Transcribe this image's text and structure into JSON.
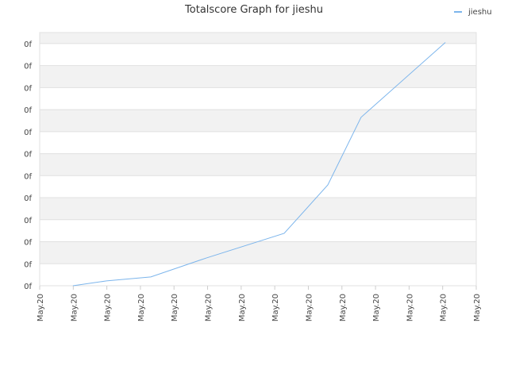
{
  "chart_data": {
    "type": "line",
    "title": "Totalscore Graph for jieshu",
    "x": [
      0.99,
      1.99,
      3.31,
      4.96,
      7.28,
      8.58,
      9.57,
      12.08
    ],
    "series": [
      {
        "name": "jieshu",
        "color": "#7cb5ec",
        "values": [
          0,
          0.22,
          0.4,
          1.26,
          2.38,
          4.58,
          7.65,
          11.05
        ]
      }
    ],
    "xlim": [
      0,
      13
    ],
    "xticks": [
      {
        "value": 0,
        "label": "May.20"
      },
      {
        "value": 1,
        "label": "May.20"
      },
      {
        "value": 2,
        "label": "May.20"
      },
      {
        "value": 3,
        "label": "May.20"
      },
      {
        "value": 4,
        "label": "May.20"
      },
      {
        "value": 5,
        "label": "May.20"
      },
      {
        "value": 6,
        "label": "May.20"
      },
      {
        "value": 7,
        "label": "May.20"
      },
      {
        "value": 8,
        "label": "May.20"
      },
      {
        "value": 9,
        "label": "May.20"
      },
      {
        "value": 10,
        "label": "May.20"
      },
      {
        "value": 11,
        "label": "May.20"
      },
      {
        "value": 12,
        "label": "May.20"
      },
      {
        "value": 13,
        "label": "May.20"
      }
    ],
    "ylim": [
      0,
      11.5
    ],
    "yticks": [
      {
        "value": 0,
        "label": "0f"
      },
      {
        "value": 1,
        "label": "0f"
      },
      {
        "value": 2,
        "label": "0f"
      },
      {
        "value": 3,
        "label": "0f"
      },
      {
        "value": 4,
        "label": "0f"
      },
      {
        "value": 5,
        "label": "0f"
      },
      {
        "value": 6,
        "label": "0f"
      },
      {
        "value": 7,
        "label": "0f"
      },
      {
        "value": 8,
        "label": "0f"
      },
      {
        "value": 9,
        "label": "0f"
      },
      {
        "value": 10,
        "label": "0f"
      },
      {
        "value": 11,
        "label": "0f"
      }
    ],
    "grid": true,
    "alternate_bands": true,
    "legend": "top-right"
  }
}
